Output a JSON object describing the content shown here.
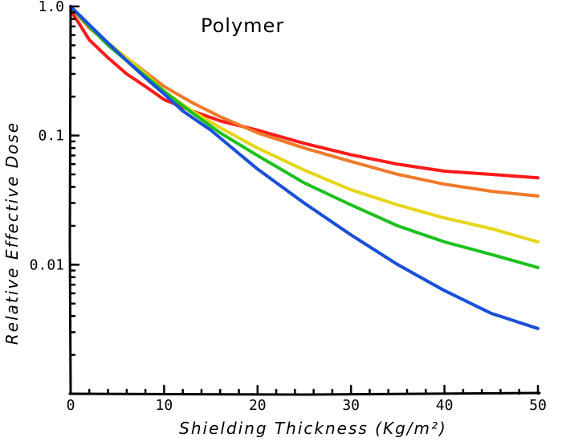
{
  "chart_data": {
    "type": "line",
    "title": "Polymer",
    "xlabel": "Shielding Thickness (Kg/m²)",
    "ylabel": "Relative Effective Dose",
    "y_scale": "log",
    "xlim": [
      0,
      50
    ],
    "ylim": [
      0.001,
      1.0
    ],
    "grid": false,
    "x_tick_labels": [
      "0",
      "10",
      "20",
      "30",
      "40",
      "50"
    ],
    "y_tick_labels": [
      "1.0",
      "0.1",
      "0.01"
    ],
    "series": [
      {
        "color": "#ff1a1a",
        "x": [
          0,
          1,
          2,
          4,
          6,
          8,
          10,
          13,
          16,
          20,
          25,
          30,
          35,
          40,
          45,
          50
        ],
        "y": [
          0.93,
          0.72,
          0.55,
          0.4,
          0.3,
          0.24,
          0.19,
          0.155,
          0.13,
          0.11,
          0.087,
          0.071,
          0.06,
          0.053,
          0.05,
          0.047
        ]
      },
      {
        "color": "#f07a2a",
        "x": [
          0,
          1,
          2,
          4,
          6,
          8,
          10,
          13,
          16,
          20,
          25,
          30,
          35,
          40,
          45,
          50
        ],
        "y": [
          1.0,
          0.82,
          0.68,
          0.52,
          0.4,
          0.31,
          0.24,
          0.18,
          0.14,
          0.105,
          0.08,
          0.063,
          0.05,
          0.042,
          0.037,
          0.034
        ]
      },
      {
        "color": "#e6d619",
        "x": [
          0,
          2,
          4,
          6,
          8,
          10,
          13,
          16,
          20,
          25,
          30,
          35,
          40,
          45,
          50
        ],
        "y": [
          1.0,
          0.7,
          0.52,
          0.4,
          0.3,
          0.22,
          0.155,
          0.115,
          0.08,
          0.054,
          0.038,
          0.029,
          0.023,
          0.019,
          0.015
        ]
      },
      {
        "color": "#1ec01e",
        "x": [
          0,
          2,
          4,
          6,
          8,
          10,
          13,
          16,
          20,
          25,
          30,
          35,
          40,
          45,
          50
        ],
        "y": [
          1.0,
          0.7,
          0.5,
          0.38,
          0.29,
          0.22,
          0.15,
          0.105,
          0.07,
          0.043,
          0.029,
          0.02,
          0.015,
          0.012,
          0.0095
        ]
      },
      {
        "color": "#1a4fd9",
        "x": [
          0,
          2,
          4,
          6,
          8,
          10,
          12,
          15,
          20,
          25,
          30,
          35,
          40,
          45,
          50
        ],
        "y": [
          1.0,
          0.72,
          0.52,
          0.38,
          0.28,
          0.21,
          0.155,
          0.11,
          0.055,
          0.03,
          0.017,
          0.01,
          0.0063,
          0.0042,
          0.0032
        ]
      }
    ]
  }
}
